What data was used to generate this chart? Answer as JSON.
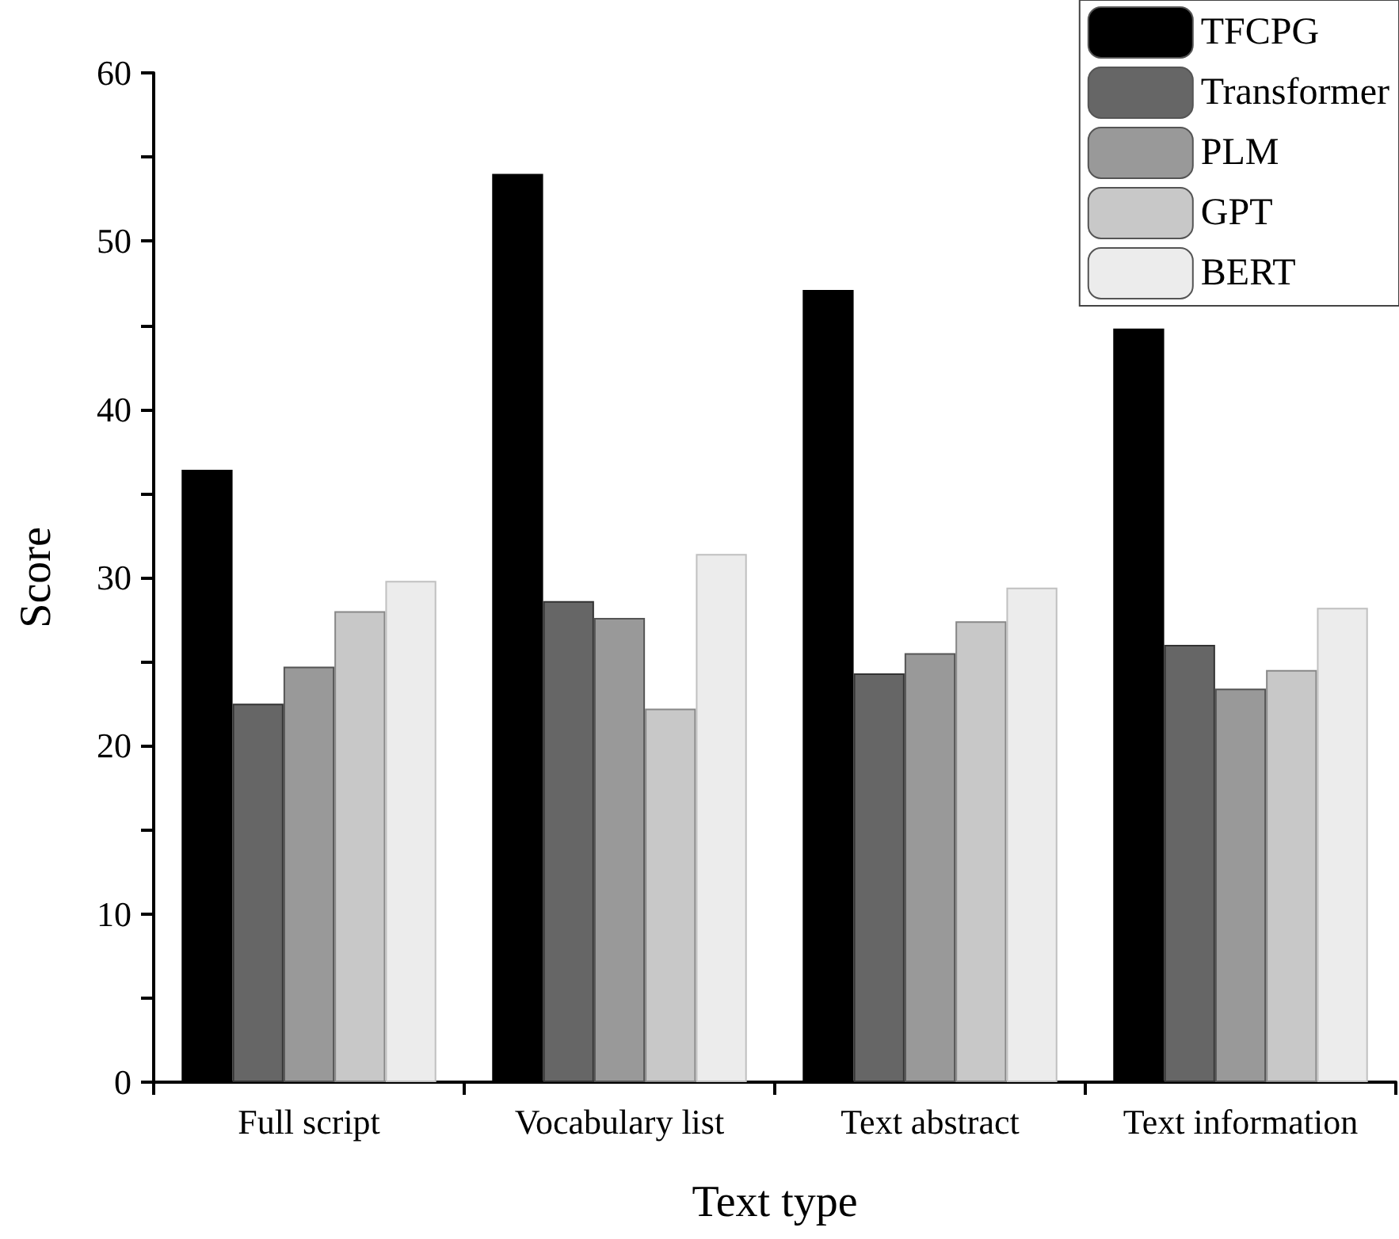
{
  "chart_data": {
    "type": "bar",
    "xlabel": "Text type",
    "ylabel": "Score",
    "categories": [
      "Full script",
      "Vocabulary list",
      "Text abstract",
      "Text information"
    ],
    "series": [
      {
        "name": "TFCPG",
        "color": "#000000",
        "values": [
          36.4,
          54.0,
          47.1,
          44.8
        ]
      },
      {
        "name": "Transformer",
        "color": "#666666",
        "values": [
          22.5,
          28.6,
          24.3,
          26.0
        ]
      },
      {
        "name": "PLM",
        "color": "#999999",
        "values": [
          24.7,
          27.6,
          25.5,
          23.4
        ]
      },
      {
        "name": "GPT",
        "color": "#c8c8c8",
        "values": [
          28.0,
          22.2,
          27.4,
          24.5
        ]
      },
      {
        "name": "BERT",
        "color": "#ececec",
        "values": [
          29.8,
          31.4,
          29.4,
          28.2
        ]
      }
    ],
    "ylim": [
      0,
      60
    ],
    "yticks": [
      0,
      {
        "value": 5,
        "label": null
      },
      10,
      {
        "value": 15,
        "label": null
      },
      20,
      {
        "value": 25,
        "label": null
      },
      30,
      {
        "value": 35,
        "label": null
      },
      40,
      {
        "value": 45,
        "label": null
      },
      50,
      {
        "value": 55,
        "label": null
      },
      60
    ],
    "grid": false,
    "legend": "top right"
  }
}
